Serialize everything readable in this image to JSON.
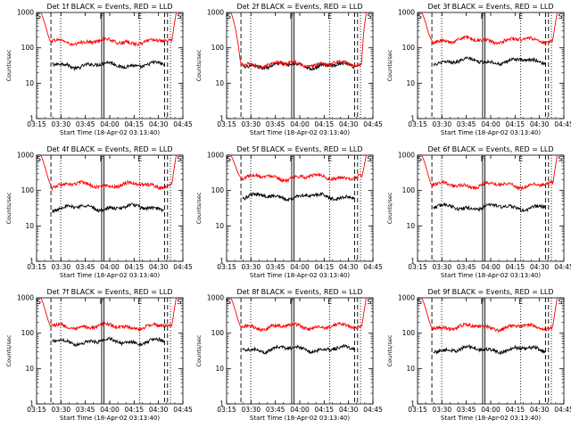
{
  "chart_data": [
    {
      "type": "line",
      "title": "Det 1f BLACK = Events, RED = LLD",
      "xlabel": "Start Time (18-Apr-02 03:13:40)",
      "ylabel": "Counts/sec",
      "yscale": "log",
      "ylim": [
        1,
        1000
      ],
      "yticks": [
        "1",
        "10",
        "100",
        "1000"
      ],
      "xticks": [
        "03:15",
        "03:30",
        "03:45",
        "04:00",
        "04:15",
        "04:30",
        "04:45"
      ],
      "markers": [
        "S",
        "F",
        "E",
        "S"
      ],
      "series": [
        {
          "color": "#000000",
          "base": 33,
          "ends": true
        },
        {
          "color": "#ff0000",
          "base": 150
        }
      ]
    },
    {
      "type": "line",
      "title": "Det 2f BLACK = Events, RED = LLD",
      "xlabel": "Start Time (18-Apr-02 03:13:40)",
      "ylabel": "Counts/sec",
      "yscale": "log",
      "ylim": [
        1,
        1000
      ],
      "yticks": [
        "1",
        "10",
        "100",
        "1000"
      ],
      "xticks": [
        "03:15",
        "03:30",
        "03:45",
        "04:00",
        "04:15",
        "04:30",
        "04:45"
      ],
      "markers": [
        "S",
        "F",
        "E",
        "S"
      ],
      "series": [
        {
          "color": "#000000",
          "base": 32,
          "ends": true
        },
        {
          "color": "#ff0000",
          "base": 35
        }
      ]
    },
    {
      "type": "line",
      "title": "Det 3f BLACK = Events, RED = LLD",
      "xlabel": "Start Time (18-Apr-02 03:13:40)",
      "ylabel": "Counts/sec",
      "yscale": "log",
      "ylim": [
        1,
        1000
      ],
      "yticks": [
        "1",
        "10",
        "100",
        "1000"
      ],
      "xticks": [
        "03:15",
        "03:30",
        "03:45",
        "04:00",
        "04:15",
        "04:30",
        "04:45"
      ],
      "markers": [
        "S",
        "F",
        "E",
        "S"
      ],
      "series": [
        {
          "color": "#000000",
          "base": 42,
          "ends": true
        },
        {
          "color": "#ff0000",
          "base": 165
        }
      ]
    },
    {
      "type": "line",
      "title": "Det 4f BLACK = Events, RED = LLD",
      "xlabel": "Start Time (18-Apr-02 03:13:40)",
      "ylabel": "Counts/sec",
      "yscale": "log",
      "ylim": [
        1,
        1000
      ],
      "yticks": [
        "1",
        "10",
        "100",
        "1000"
      ],
      "xticks": [
        "03:15",
        "03:30",
        "03:45",
        "04:00",
        "04:15",
        "04:30",
        "04:45"
      ],
      "markers": [
        "S",
        "F",
        "E",
        "S"
      ],
      "series": [
        {
          "color": "#000000",
          "base": 33,
          "ends": true
        },
        {
          "color": "#ff0000",
          "base": 145
        }
      ]
    },
    {
      "type": "line",
      "title": "Det 5f BLACK = Events, RED = LLD",
      "xlabel": "Start Time (18-Apr-02 03:13:40)",
      "ylabel": "Counts/sec",
      "yscale": "log",
      "ylim": [
        1,
        1000
      ],
      "yticks": [
        "1",
        "10",
        "100",
        "1000"
      ],
      "xticks": [
        "03:15",
        "03:30",
        "03:45",
        "04:00",
        "04:15",
        "04:30",
        "04:45"
      ],
      "markers": [
        "S",
        "F",
        "E",
        "S"
      ],
      "series": [
        {
          "color": "#000000",
          "base": 68,
          "ends": true
        },
        {
          "color": "#ff0000",
          "base": 240
        }
      ]
    },
    {
      "type": "line",
      "title": "Det 6f BLACK = Events, RED = LLD",
      "xlabel": "Start Time (18-Apr-02 03:13:40)",
      "ylabel": "Counts/sec",
      "yscale": "log",
      "ylim": [
        1,
        1000
      ],
      "yticks": [
        "1",
        "10",
        "100",
        "1000"
      ],
      "xticks": [
        "03:15",
        "03:30",
        "03:45",
        "04:00",
        "04:15",
        "04:30",
        "04:45"
      ],
      "markers": [
        "S",
        "F",
        "E",
        "S"
      ],
      "series": [
        {
          "color": "#000000",
          "base": 34,
          "ends": true
        },
        {
          "color": "#ff0000",
          "base": 145
        }
      ]
    },
    {
      "type": "line",
      "title": "Det 7f BLACK = Events, RED = LLD",
      "xlabel": "Start Time (18-Apr-02 03:13:40)",
      "ylabel": "Counts/sec",
      "yscale": "log",
      "ylim": [
        1,
        1000
      ],
      "yticks": [
        "1",
        "10",
        "100",
        "1000"
      ],
      "xticks": [
        "03:15",
        "03:30",
        "03:45",
        "04:00",
        "04:15",
        "04:30",
        "04:45"
      ],
      "markers": [
        "S",
        "F",
        "E",
        "S"
      ],
      "series": [
        {
          "color": "#000000",
          "base": 58,
          "ends": true
        },
        {
          "color": "#ff0000",
          "base": 155
        }
      ]
    },
    {
      "type": "line",
      "title": "Det 8f BLACK = Events, RED = LLD",
      "xlabel": "Start Time (18-Apr-02 03:13:40)",
      "ylabel": "Counts/sec",
      "yscale": "log",
      "ylim": [
        1,
        1000
      ],
      "yticks": [
        "1",
        "10",
        "100",
        "1000"
      ],
      "xticks": [
        "03:15",
        "03:30",
        "03:45",
        "04:00",
        "04:15",
        "04:30",
        "04:45"
      ],
      "markers": [
        "S",
        "F",
        "E",
        "S"
      ],
      "series": [
        {
          "color": "#000000",
          "base": 36,
          "ends": true
        },
        {
          "color": "#ff0000",
          "base": 155
        }
      ]
    },
    {
      "type": "line",
      "title": "Det 9f BLACK = Events, RED = LLD",
      "xlabel": "Start Time (18-Apr-02 03:13:40)",
      "ylabel": "Counts/sec",
      "yscale": "log",
      "ylim": [
        1,
        1000
      ],
      "yticks": [
        "1",
        "10",
        "100",
        "1000"
      ],
      "xticks": [
        "03:15",
        "03:30",
        "03:45",
        "04:00",
        "04:15",
        "04:30",
        "04:45"
      ],
      "markers": [
        "S",
        "F",
        "E",
        "S"
      ],
      "series": [
        {
          "color": "#000000",
          "base": 35,
          "ends": true
        },
        {
          "color": "#ff0000",
          "base": 150
        }
      ]
    }
  ]
}
